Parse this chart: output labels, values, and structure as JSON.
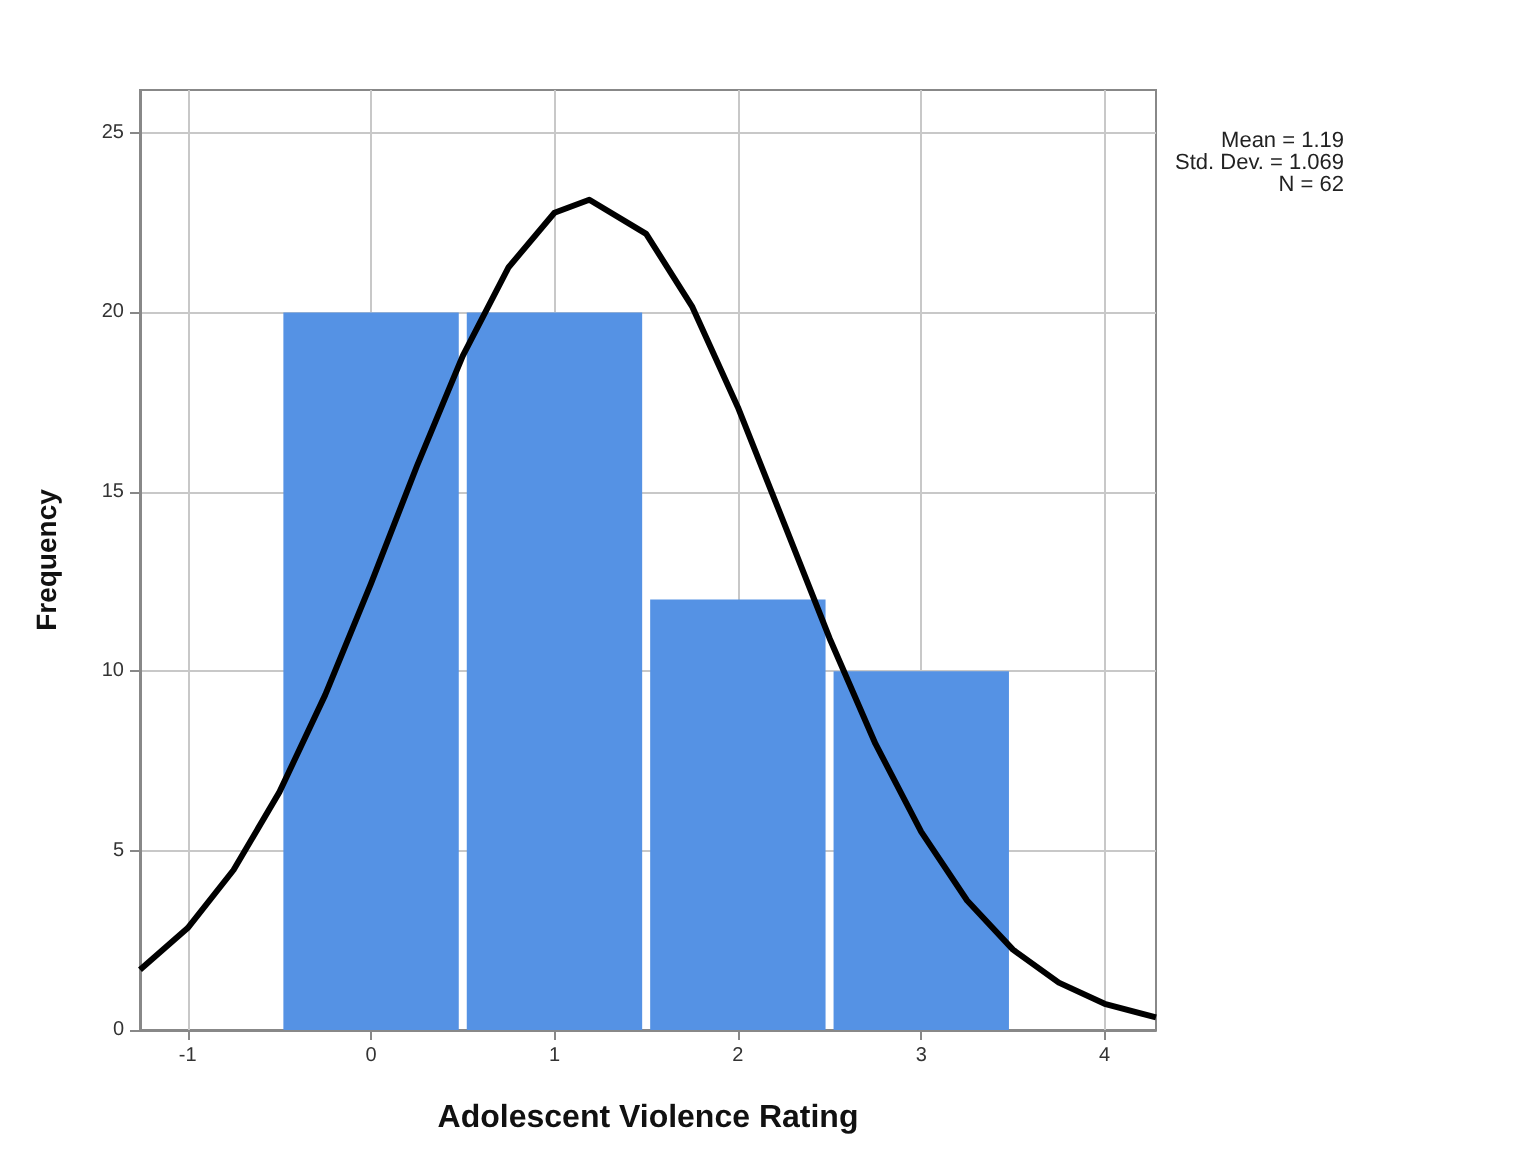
{
  "chart_data": {
    "type": "histogram",
    "xlabel": "Adolescent Violence Rating",
    "ylabel": "Frequency",
    "bins": [
      -0.5,
      0.5,
      1.5,
      2.5,
      3.5
    ],
    "values": [
      20,
      20,
      12,
      10
    ],
    "color": "#5592e4",
    "series": [
      {
        "type": "line",
        "color": "#000000",
        "x": [
          -1.26,
          -1,
          -0.75,
          -0.5,
          -0.25,
          0,
          0.25,
          0.5,
          0.75,
          1,
          1.19,
          1.5,
          1.75,
          2,
          2.25,
          2.5,
          2.75,
          3,
          3.25,
          3.5,
          3.75,
          4,
          4.28
        ],
        "values": [
          1.68,
          2.84,
          4.46,
          6.63,
          9.34,
          12.45,
          15.72,
          18.79,
          21.26,
          22.78,
          23.14,
          22.19,
          20.17,
          17.36,
          14.15,
          10.92,
          7.98,
          5.52,
          3.61,
          2.24,
          1.32,
          0.73,
          0.35
        ]
      }
    ],
    "xlim": [
      -1.26,
      4.28
    ],
    "xticks": [
      -1,
      0,
      1,
      2,
      3,
      4
    ],
    "ylim": [
      0,
      26.2
    ],
    "yticks": [
      0,
      5,
      10,
      15,
      20,
      25
    ],
    "grid": true,
    "annotations": [
      "Mean = 1.19",
      "Std. Dev. = 1.069",
      "N = 62"
    ]
  }
}
